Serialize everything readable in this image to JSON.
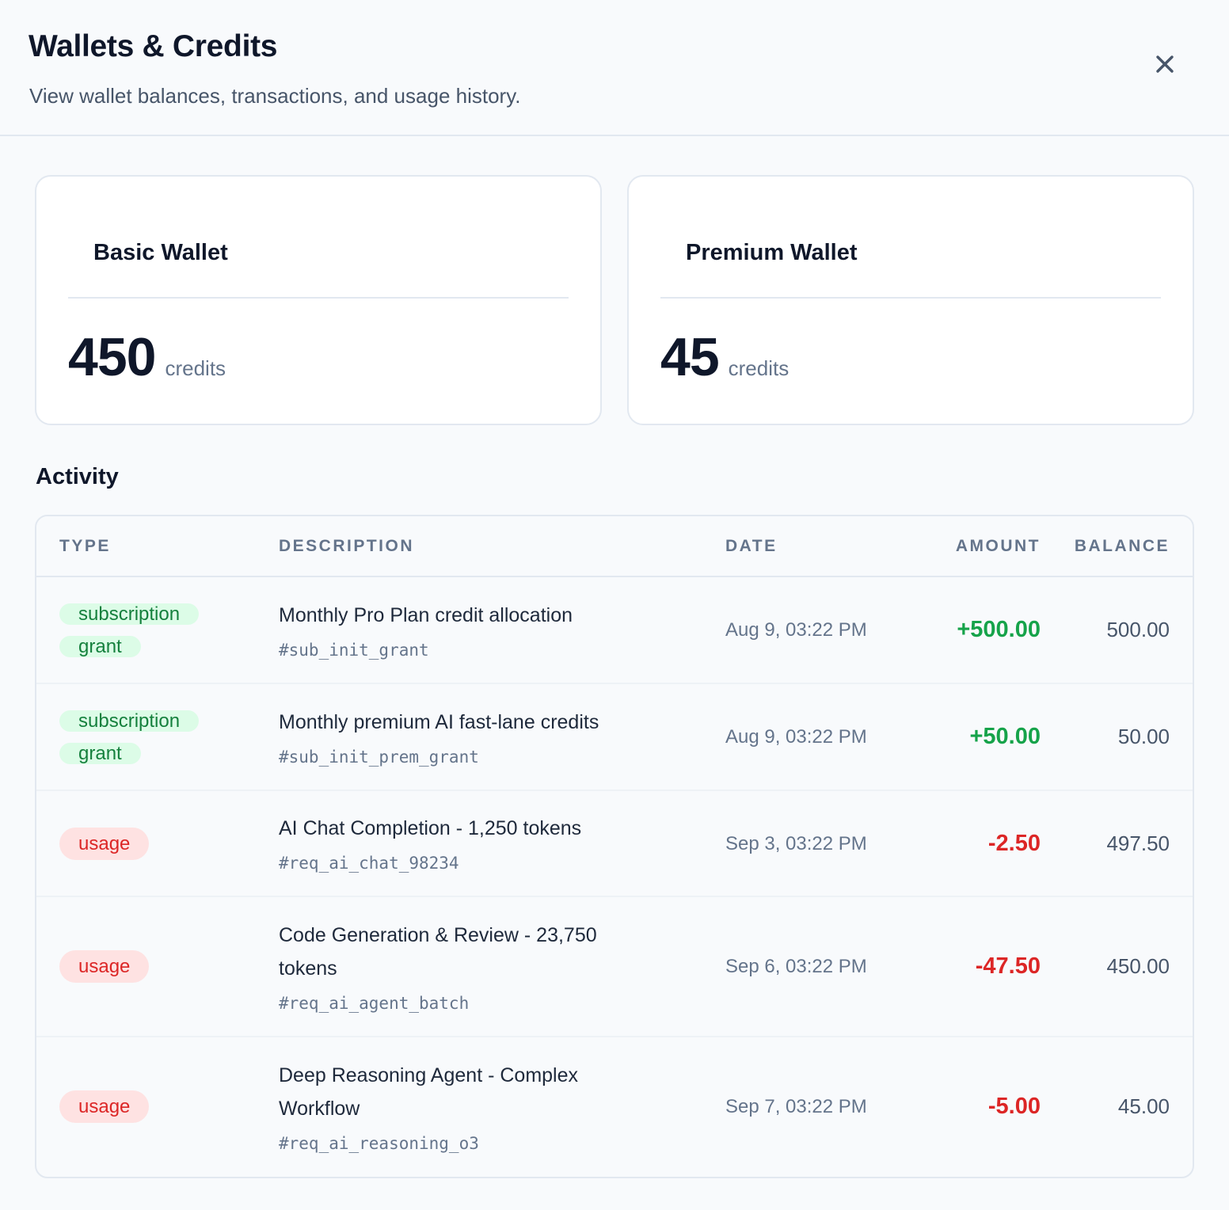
{
  "header": {
    "title": "Wallets & Credits",
    "subtitle": "View wallet balances, transactions, and usage history.",
    "close_icon": "close-icon"
  },
  "wallets": [
    {
      "name": "Basic Wallet",
      "amount": "450",
      "unit": "credits"
    },
    {
      "name": "Premium Wallet",
      "amount": "45",
      "unit": "credits"
    }
  ],
  "activity": {
    "title": "Activity",
    "columns": {
      "type": "TYPE",
      "description": "DESCRIPTION",
      "date": "DATE",
      "amount": "AMOUNT",
      "balance": "BALANCE"
    },
    "rows": [
      {
        "type": "subscription grant",
        "type_kind": "grant",
        "description": "Monthly Pro Plan credit allocation",
        "ref": "#sub_init_grant",
        "date": "Aug 9, 03:22 PM",
        "amount": "+500.00",
        "balance": "500.00"
      },
      {
        "type": "subscription grant",
        "type_kind": "grant",
        "description": "Monthly premium AI fast-lane credits",
        "ref": "#sub_init_prem_grant",
        "date": "Aug 9, 03:22 PM",
        "amount": "+50.00",
        "balance": "50.00"
      },
      {
        "type": "usage",
        "type_kind": "usage",
        "description": "AI Chat Completion - 1,250 tokens",
        "ref": "#req_ai_chat_98234",
        "date": "Sep 3, 03:22 PM",
        "amount": "-2.50",
        "balance": "497.50"
      },
      {
        "type": "usage",
        "type_kind": "usage",
        "description": "Code Generation & Review - 23,750 tokens",
        "ref": "#req_ai_agent_batch",
        "date": "Sep 6, 03:22 PM",
        "amount": "-47.50",
        "balance": "450.00"
      },
      {
        "type": "usage",
        "type_kind": "usage",
        "description": "Deep Reasoning Agent - Complex Workflow",
        "ref": "#req_ai_reasoning_o3",
        "date": "Sep 7, 03:22 PM",
        "amount": "-5.00",
        "balance": "45.00"
      }
    ]
  },
  "colors": {
    "positive": "#16a34a",
    "negative": "#dc2626",
    "grant_badge_bg": "#dcfce7",
    "usage_badge_bg": "#fee2e2"
  }
}
